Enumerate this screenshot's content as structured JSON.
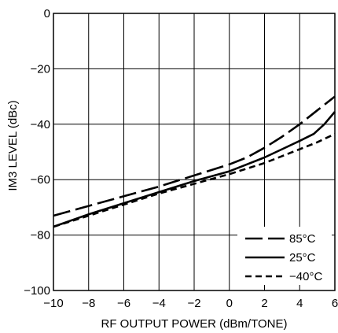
{
  "chart_data": {
    "type": "line",
    "xlabel": "RF OUTPUT POWER (dBm/TONE)",
    "ylabel": "IM3 LEVEL (dBc)",
    "xlim": [
      -10,
      6
    ],
    "ylim": [
      -100,
      0
    ],
    "xticks": [
      -10,
      -8,
      -6,
      -4,
      -2,
      0,
      2,
      4,
      6
    ],
    "yticks": [
      0,
      -20,
      -40,
      -60,
      -80,
      -100
    ],
    "xtick_labels": [
      "−10",
      "−8",
      "−6",
      "−4",
      "−2",
      "0",
      "2",
      "4",
      "6"
    ],
    "ytick_labels": [
      "0",
      "−20",
      "−40",
      "−60",
      "−80",
      "−100"
    ],
    "grid": true,
    "legend_position": "bottom-right",
    "series": [
      {
        "name": "85°C",
        "style": "long-dash",
        "x": [
          -10,
          -8,
          -6,
          -4,
          -2,
          0,
          1,
          2,
          3,
          4,
          5,
          6
        ],
        "y": [
          -73,
          -69.5,
          -66,
          -62.5,
          -58.5,
          -54.5,
          -52,
          -48.5,
          -44.5,
          -40,
          -35,
          -30
        ]
      },
      {
        "name": "25°C",
        "style": "solid",
        "x": [
          -10,
          -8,
          -6,
          -4,
          -2,
          0,
          1,
          2,
          3,
          4,
          4.8,
          5.4,
          6
        ],
        "y": [
          -77,
          -72.5,
          -68.5,
          -64.5,
          -60.5,
          -57,
          -54.5,
          -52,
          -49,
          -46,
          -43.5,
          -40,
          -35.5
        ]
      },
      {
        "name": "−40°C",
        "style": "short-dash",
        "x": [
          -10,
          -8,
          -6,
          -4,
          -2,
          0,
          1,
          2,
          3,
          4,
          5,
          6
        ],
        "y": [
          -77,
          -73,
          -69,
          -65,
          -61.5,
          -58,
          -56,
          -54,
          -51.5,
          -49,
          -46.5,
          -43.5
        ]
      }
    ]
  }
}
